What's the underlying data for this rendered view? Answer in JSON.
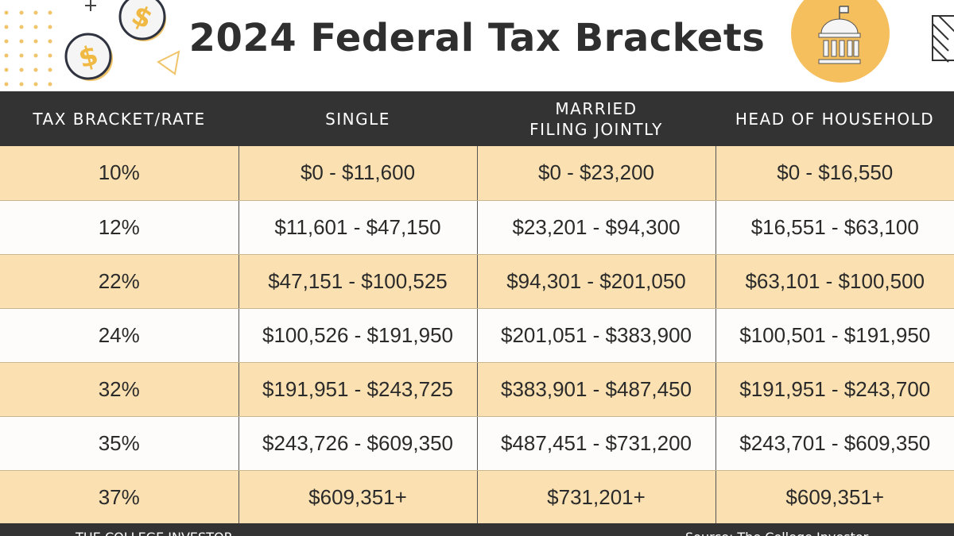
{
  "header": {
    "title": "2024 Federal Tax Brackets",
    "icons": [
      "dollar-coin-icon",
      "dollar-coin-icon",
      "capitol-building-icon"
    ],
    "accent": "#f5bf5e"
  },
  "table": {
    "columns": [
      "TAX BRACKET/RATE",
      "SINGLE",
      "MARRIED FILING JOINTLY",
      "HEAD OF HOUSEHOLD"
    ],
    "col2_line1": "MARRIED",
    "col2_line2": "FILING JOINTLY",
    "rows": [
      [
        "10%",
        "$0 - $11,600",
        "$0 - $23,200",
        "$0 - $16,550"
      ],
      [
        "12%",
        "$11,601 - $47,150",
        "$23,201 - $94,300",
        "$16,551 - $63,100"
      ],
      [
        "22%",
        "$47,151 - $100,525",
        "$94,301 - $201,050",
        "$63,101 - $100,500"
      ],
      [
        "24%",
        "$100,526 - $191,950",
        "$201,051 - $383,900",
        "$100,501 - $191,950"
      ],
      [
        "32%",
        "$191,951 - $243,725",
        "$383,901 - $487,450",
        "$191,951 - $243,700"
      ],
      [
        "35%",
        "$243,726 - $609,350",
        "$487,451 - $731,200",
        "$243,701 - $609,350"
      ],
      [
        "37%",
        "$609,351+",
        "$731,201+",
        "$609,351+"
      ]
    ]
  },
  "footer": {
    "brand": "THE COLLEGE INVESTOR",
    "source": "Source: The College Investor"
  }
}
